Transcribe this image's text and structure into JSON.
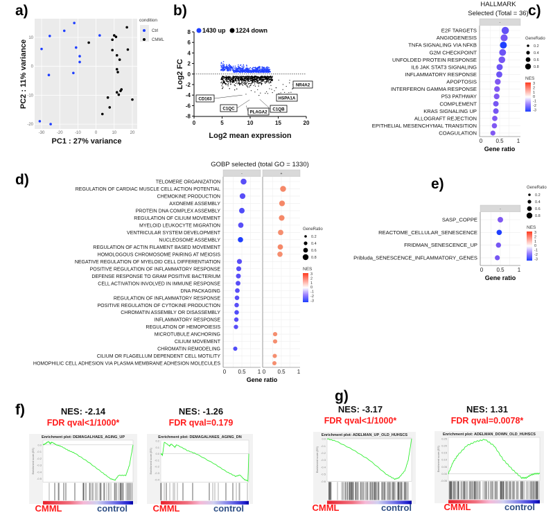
{
  "panel_labels": {
    "a": "a)",
    "b": "b)",
    "c": "c)",
    "d": "d)",
    "e": "e)",
    "f": "f)",
    "g": "g)"
  },
  "colors": {
    "ctrl": "#1f3fff",
    "cmml": "#000000",
    "up": "#1f3fff",
    "down": "#000000",
    "gsea_curve": "#33ee33",
    "fdr": "#ff1a1a",
    "control_label": "#2d4e85"
  },
  "chart_data": [
    {
      "id": "pca",
      "type": "scatter",
      "xlabel": "PC1 : 27% variance",
      "ylabel": "PC2 : 11% variance",
      "legend_title": "condition",
      "xlim": [
        -33,
        22
      ],
      "ylim": [
        -22,
        16
      ],
      "xticks": [
        -30,
        -20,
        -10,
        0,
        10,
        20
      ],
      "yticks": [
        -20,
        -10,
        0,
        10
      ],
      "series": [
        {
          "name": "Ctrl",
          "color": "#1f3fff",
          "points": [
            [
              -12,
              15
            ],
            [
              -17.5,
              12.3
            ],
            [
              -25.5,
              10.5
            ],
            [
              -30,
              6
            ],
            [
              -11,
              6.5
            ],
            [
              -9,
              3.5
            ],
            [
              -9,
              1.5
            ],
            [
              -26,
              -3
            ],
            [
              -12.5,
              -2.3
            ],
            [
              2,
              10.7
            ],
            [
              -31,
              -19
            ],
            [
              -25,
              -20
            ]
          ]
        },
        {
          "name": "CMML",
          "color": "#000000",
          "points": [
            [
              -4,
              8.2
            ],
            [
              10,
              10.7
            ],
            [
              11,
              10.2
            ],
            [
              9,
              9.2
            ],
            [
              17,
              13.5
            ],
            [
              9,
              5.6
            ],
            [
              17.5,
              5.8
            ],
            [
              11.5,
              3.8
            ],
            [
              13,
              2.3
            ],
            [
              11.5,
              -1
            ],
            [
              12,
              -2
            ],
            [
              11.5,
              -9
            ],
            [
              12.5,
              -9.8
            ],
            [
              13.5,
              -8.5
            ],
            [
              14,
              -8
            ],
            [
              6.5,
              -10.8
            ],
            [
              20,
              -11.5
            ],
            [
              7.5,
              -14.2
            ],
            [
              3.5,
              -16.5
            ]
          ]
        }
      ]
    },
    {
      "id": "ma_plot",
      "type": "scatter",
      "xlabel": "Log2 mean expression",
      "ylabel": "Log2 FC",
      "xlim": [
        0,
        20
      ],
      "ylim": [
        -8,
        8
      ],
      "xticks": [
        0,
        5,
        10,
        15,
        20
      ],
      "yticks": [
        -8,
        -6,
        -4,
        -2,
        0,
        2,
        4,
        6,
        8
      ],
      "legend": [
        {
          "label": "1430 up",
          "count": 1430
        },
        {
          "label": "1224 down",
          "count": 1224
        }
      ],
      "annotations": [
        {
          "label": "NR4A2",
          "x": 17.5,
          "y": -2.0
        },
        {
          "label": "CD163",
          "x": 8.6,
          "y": -4.0
        },
        {
          "label": "HSPA1A",
          "x": 15.2,
          "y": -4.4
        },
        {
          "label": "C1QC",
          "x": 9.9,
          "y": -4.9
        },
        {
          "label": "PLAGA2",
          "x": 9.3,
          "y": -6.0
        },
        {
          "label": "C1QB",
          "x": 11.7,
          "y": -4.8
        }
      ]
    },
    {
      "id": "hallmark",
      "type": "scatter",
      "title": "HALLMARK",
      "subtitle": "Selected (Total = 36)",
      "facets": [
        "-"
      ],
      "xlabel": "Gene ratio",
      "xticks": [
        "0",
        "0.5",
        "1"
      ],
      "xlim": [
        0,
        1
      ],
      "size_legend_title": "GeneRatio",
      "size_legend": [
        "0.2",
        "0.4",
        "0.6",
        "0.8"
      ],
      "color_legend_title": "NES",
      "color_legend": [
        "3",
        "2",
        "1",
        "0",
        "-1",
        "-2",
        "-3"
      ],
      "rows": [
        {
          "label": "E2F TARGETS",
          "ratio": 0.65,
          "nes": -2.3,
          "facet": 0
        },
        {
          "label": "ANGIOGENESIS",
          "ratio": 0.62,
          "nes": -2.1,
          "facet": 0
        },
        {
          "label": "TNFA SIGNALING VIA NFKB",
          "ratio": 0.6,
          "nes": -3.0,
          "facet": 0
        },
        {
          "label": "G2M CHECKPOINT",
          "ratio": 0.58,
          "nes": -2.2,
          "facet": 0
        },
        {
          "label": "UNFOLDED PROTEIN RESPONSE",
          "ratio": 0.56,
          "nes": -2.1,
          "facet": 0
        },
        {
          "label": "IL6 JAK STAT3 SIGNALING",
          "ratio": 0.5,
          "nes": -2.2,
          "facet": 0
        },
        {
          "label": "INFLAMMATORY RESPONSE",
          "ratio": 0.49,
          "nes": -2.2,
          "facet": 0
        },
        {
          "label": "APOPTOSIS",
          "ratio": 0.45,
          "nes": -2.0,
          "facet": 0
        },
        {
          "label": "INTERFERON GAMMA RESPONSE",
          "ratio": 0.43,
          "nes": -2.0,
          "facet": 0
        },
        {
          "label": "P53 PATHWAY",
          "ratio": 0.42,
          "nes": -2.0,
          "facet": 0
        },
        {
          "label": "COMPLEMENT",
          "ratio": 0.4,
          "nes": -2.1,
          "facet": 0
        },
        {
          "label": "KRAS SIGNALING UP",
          "ratio": 0.4,
          "nes": -2.1,
          "facet": 0
        },
        {
          "label": "ALLOGRAFT REJECTION",
          "ratio": 0.37,
          "nes": -2.0,
          "facet": 0
        },
        {
          "label": "EPITHELIAL MESENCHYMAL TRANSITION",
          "ratio": 0.36,
          "nes": -2.0,
          "facet": 0
        },
        {
          "label": "COAGULATION",
          "ratio": 0.32,
          "nes": -2.0,
          "facet": 0
        }
      ]
    },
    {
      "id": "gobp",
      "type": "scatter",
      "title": "GOBP selected (total GO = 1330)",
      "facets": [
        "-",
        "+"
      ],
      "xlabel": "Gene ratio",
      "xticks": [
        "0",
        "0.5",
        "1"
      ],
      "xlim": [
        0,
        1
      ],
      "size_legend_title": "GeneRatio",
      "size_legend": [
        "0.2",
        "0.4",
        "0.6",
        "0.8"
      ],
      "color_legend_title": "NES",
      "color_legend": [
        "3",
        "2",
        "1",
        "0",
        "-1",
        "-2",
        "-3"
      ],
      "rows": [
        {
          "label": "TELOMERE ORGANIZATION",
          "ratio": 0.55,
          "nes": -2.4,
          "facet": 0
        },
        {
          "label": "REGULATION OF CARDIAC MUSCLE CELL ACTION POTENTIAL",
          "ratio": 0.55,
          "nes": 2.0,
          "facet": 1
        },
        {
          "label": "CHEMOKINE PRODUCTION",
          "ratio": 0.52,
          "nes": -2.4,
          "facet": 0
        },
        {
          "label": "AXONEME ASSEMBLY",
          "ratio": 0.52,
          "nes": 2.0,
          "facet": 1
        },
        {
          "label": "PROTEIN DNA COMPLEX ASSEMBLY",
          "ratio": 0.5,
          "nes": -2.5,
          "facet": 0
        },
        {
          "label": "REGULATION OF CILIUM MOVEMENT",
          "ratio": 0.51,
          "nes": 2.0,
          "facet": 1
        },
        {
          "label": "MYELOID LEUKOCYTE MIGRATION",
          "ratio": 0.47,
          "nes": -2.4,
          "facet": 0
        },
        {
          "label": "VENTRICULAR SYSTEM DEVELOPMENT",
          "ratio": 0.48,
          "nes": 1.9,
          "facet": 1
        },
        {
          "label": "NUCLEOSOME ASSEMBLY",
          "ratio": 0.46,
          "nes": -3.0,
          "facet": 0
        },
        {
          "label": "REGULATION OF ACTIN FILAMENT BASED MOVEMENT",
          "ratio": 0.47,
          "nes": 2.0,
          "facet": 1
        },
        {
          "label": "HOMOLOGOUS CHROMOSOME PAIRING AT MEIOSIS",
          "ratio": 0.46,
          "nes": 1.9,
          "facet": 1
        },
        {
          "label": "NEGATIVE REGULATION OF MYELOID CELL DIFFERENTIATION",
          "ratio": 0.43,
          "nes": -2.4,
          "facet": 0
        },
        {
          "label": "POSITIVE REGULATION OF INFLAMMATORY RESPONSE",
          "ratio": 0.41,
          "nes": -2.4,
          "facet": 0
        },
        {
          "label": "DEFENSE RESPONSE TO GRAM POSITIVE BACTERIUM",
          "ratio": 0.4,
          "nes": -2.4,
          "facet": 0
        },
        {
          "label": "CELL ACTIVATION INVOLVED IN IMMUNE RESPONSE",
          "ratio": 0.39,
          "nes": -2.4,
          "facet": 0
        },
        {
          "label": "DNA PACKAGING",
          "ratio": 0.37,
          "nes": -2.4,
          "facet": 0
        },
        {
          "label": "REGULATION OF INFLAMMATORY RESPONSE",
          "ratio": 0.36,
          "nes": -2.4,
          "facet": 0
        },
        {
          "label": "POSITIVE REGULATION OF CYTOKINE PRODUCTION",
          "ratio": 0.35,
          "nes": -2.4,
          "facet": 0
        },
        {
          "label": "CHROMATIN ASSEMBLY OR DISASSEMBLY",
          "ratio": 0.35,
          "nes": -2.5,
          "facet": 0
        },
        {
          "label": "INFLAMMATORY RESPONSE",
          "ratio": 0.34,
          "nes": -2.4,
          "facet": 0
        },
        {
          "label": "REGULATION OF HEMOPOIESIS",
          "ratio": 0.33,
          "nes": -2.4,
          "facet": 0
        },
        {
          "label": "MICROTUBULE ANCHORING",
          "ratio": 0.32,
          "nes": 1.9,
          "facet": 1
        },
        {
          "label": "CILIUM MOVEMENT",
          "ratio": 0.32,
          "nes": 1.9,
          "facet": 1
        },
        {
          "label": "CHROMATIN REMODELING",
          "ratio": 0.31,
          "nes": -2.5,
          "facet": 0
        },
        {
          "label": "CILIUM OR FLAGELLUM DEPENDENT CELL MOTILITY",
          "ratio": 0.31,
          "nes": 1.9,
          "facet": 1
        },
        {
          "label": "HOMOPHILIC CELL ADHESION VIA PLASMA MEMBRANE ADHESION MOLECULES",
          "ratio": 0.3,
          "nes": 1.9,
          "facet": 1
        }
      ]
    },
    {
      "id": "senescence",
      "type": "scatter",
      "facets": [
        "-"
      ],
      "xlabel": "Gene ratio",
      "xticks": [
        "0",
        "0.5",
        "1"
      ],
      "xlim": [
        0,
        1
      ],
      "size_legend_title": "GeneRatio",
      "size_legend": [
        "0.2",
        "0.4",
        "0.6",
        "0.8"
      ],
      "color_legend_title": "NES",
      "color_legend": [
        "3",
        "2",
        "1",
        "0",
        "-1",
        "-2",
        "-3"
      ],
      "rows": [
        {
          "label": "SASP_COPPE",
          "ratio": 0.5,
          "nes": -2.0,
          "facet": 0
        },
        {
          "label": "REACTOME_CELLULAR_SENESCENCE",
          "ratio": 0.47,
          "nes": -3.0,
          "facet": 0
        },
        {
          "label": "FRIDMAN_SENESCENCE_UP",
          "ratio": 0.45,
          "nes": -2.1,
          "facet": 0
        },
        {
          "label": "Pribluda_SENESCENCE_INFLAMMATORY_GENES",
          "ratio": 0.42,
          "nes": -2.1,
          "facet": 0
        }
      ]
    },
    {
      "id": "gsea_f1",
      "type": "line",
      "nes_text": "NES: -2.14",
      "fdr_text": "FDR qval<1/1000*",
      "title": "Enrichment plot: DEMAGALHAES_AGING_UP",
      "ylabel": "Enrichment score (ES)",
      "left_label": "CMML",
      "right_label": "control",
      "ylim": [
        -0.55,
        0.07
      ],
      "yticks": [
        "0.0",
        "-0.1",
        "-0.2",
        "-0.3",
        "-0.4",
        "-0.5"
      ],
      "curve": [
        [
          0,
          0
        ],
        [
          0.03,
          0.02
        ],
        [
          0.06,
          0.05
        ],
        [
          0.08,
          0.02
        ],
        [
          0.1,
          0.04
        ],
        [
          0.15,
          0
        ],
        [
          0.2,
          -0.02
        ],
        [
          0.28,
          -0.08
        ],
        [
          0.35,
          -0.12
        ],
        [
          0.5,
          -0.25
        ],
        [
          0.65,
          -0.4
        ],
        [
          0.75,
          -0.5
        ],
        [
          0.8,
          -0.52
        ],
        [
          0.84,
          -0.45
        ],
        [
          0.92,
          -0.45
        ],
        [
          0.96,
          -0.3
        ],
        [
          1,
          0
        ]
      ]
    },
    {
      "id": "gsea_f2",
      "type": "line",
      "nes_text": "NES: -1.26",
      "fdr_text": "FDR qval=0.179",
      "title": "Enrichment plot: DEMAGALHAES_AGING_DN",
      "ylabel": "Enrichment score (ES)",
      "left_label": "CMML",
      "right_label": "control",
      "ylim": [
        -0.44,
        0.21
      ],
      "yticks": [
        "0.2",
        "0.1",
        "0.0",
        "-0.1",
        "-0.2",
        "-0.3",
        "-0.4"
      ],
      "curve": [
        [
          0,
          0
        ],
        [
          0.02,
          -0.02
        ],
        [
          0.04,
          0.18
        ],
        [
          0.1,
          0.12
        ],
        [
          0.12,
          0.15
        ],
        [
          0.16,
          0.1
        ],
        [
          0.18,
          0.14
        ],
        [
          0.3,
          0.05
        ],
        [
          0.4,
          0.0
        ],
        [
          0.6,
          -0.15
        ],
        [
          0.75,
          -0.28
        ],
        [
          0.85,
          -0.35
        ],
        [
          0.9,
          -0.33
        ],
        [
          0.95,
          -0.4
        ],
        [
          0.99,
          -0.42
        ],
        [
          1,
          0
        ]
      ]
    },
    {
      "id": "gsea_g1",
      "type": "line",
      "nes_text": "NES: -3.17",
      "fdr_text": "FDR qval<1/1000*",
      "title": "Enrichment plot: ADELMAN_UP_OLD_HUHSCS",
      "ylabel": "Enrichment score (ES)",
      "left_label": "CMML",
      "right_label": "control",
      "ylim": [
        -0.6,
        0.01
      ],
      "yticks": [
        "0.0",
        "-0.1",
        "-0.2",
        "-0.3",
        "-0.4",
        "-0.5",
        "-0.6"
      ],
      "curve": [
        [
          0,
          0
        ],
        [
          0.1,
          -0.03
        ],
        [
          0.3,
          -0.15
        ],
        [
          0.5,
          -0.3
        ],
        [
          0.7,
          -0.5
        ],
        [
          0.8,
          -0.57
        ],
        [
          0.85,
          -0.55
        ],
        [
          0.92,
          -0.45
        ],
        [
          0.96,
          -0.3
        ],
        [
          1,
          0
        ]
      ]
    },
    {
      "id": "gsea_g2",
      "type": "line",
      "nes_text": "NES: 1.31",
      "fdr_text": "FDR qval=0.0078*",
      "title": "Enrichment plot: ADELMAN_DOWN_OLD_HUHSCS",
      "ylabel": "Enrichment score (ES)",
      "left_label": "CMML",
      "right_label": "control",
      "ylim": [
        -0.05,
        0.26
      ],
      "yticks": [
        "0.25",
        "0.20",
        "0.15",
        "0.10",
        "0.05",
        "0.00",
        "-0.05"
      ],
      "curve": [
        [
          0,
          0
        ],
        [
          0.05,
          0.08
        ],
        [
          0.1,
          0.13
        ],
        [
          0.2,
          0.2
        ],
        [
          0.3,
          0.23
        ],
        [
          0.4,
          0.245
        ],
        [
          0.5,
          0.2
        ],
        [
          0.6,
          0.1
        ],
        [
          0.7,
          0.03
        ],
        [
          0.8,
          -0.03
        ],
        [
          0.85,
          -0.03
        ],
        [
          0.9,
          -0.01
        ],
        [
          0.95,
          0
        ],
        [
          1,
          0
        ]
      ]
    }
  ]
}
